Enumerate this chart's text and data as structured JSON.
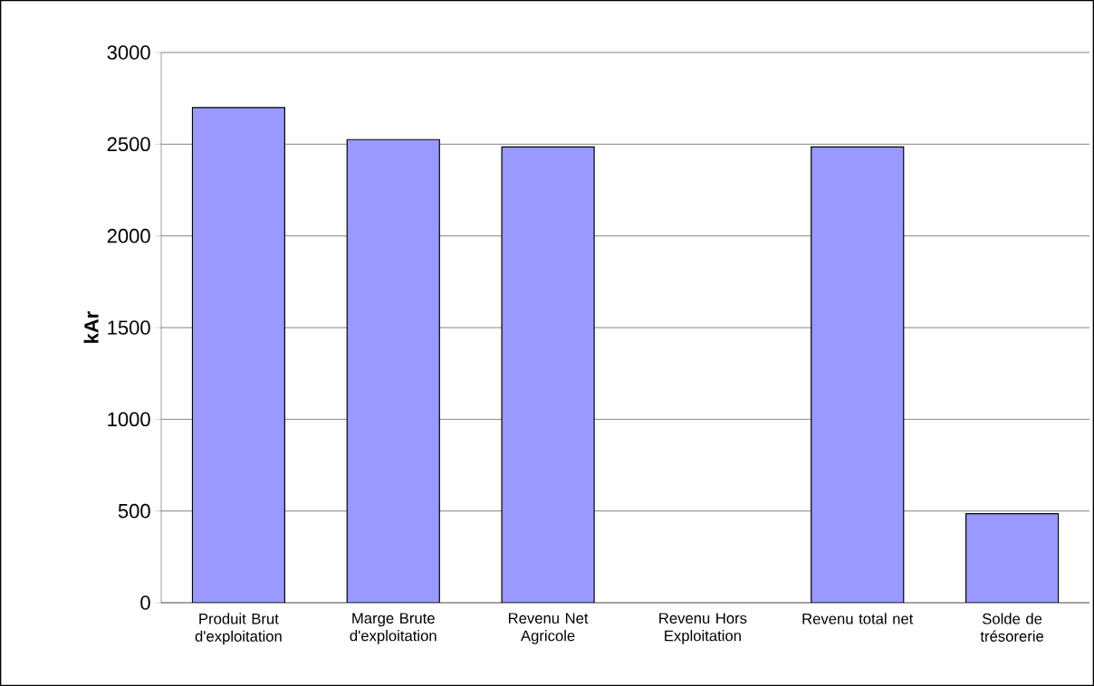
{
  "chart_data": {
    "type": "bar",
    "ylabel": "kAr",
    "categories": [
      "Produit Brut d'exploitation",
      "Marge Brute d'exploitation",
      "Revenu Net Agricole",
      "Revenu Hors Exploitation",
      "Revenu total net",
      "Solde de trésorerie"
    ],
    "values": [
      2700,
      2525,
      2485,
      null,
      2485,
      485
    ],
    "color": "#9999ff",
    "ylim": [
      0,
      3000
    ],
    "yticks": [
      0,
      500,
      1000,
      1500,
      2000,
      2500,
      3000
    ],
    "grid": "y"
  }
}
